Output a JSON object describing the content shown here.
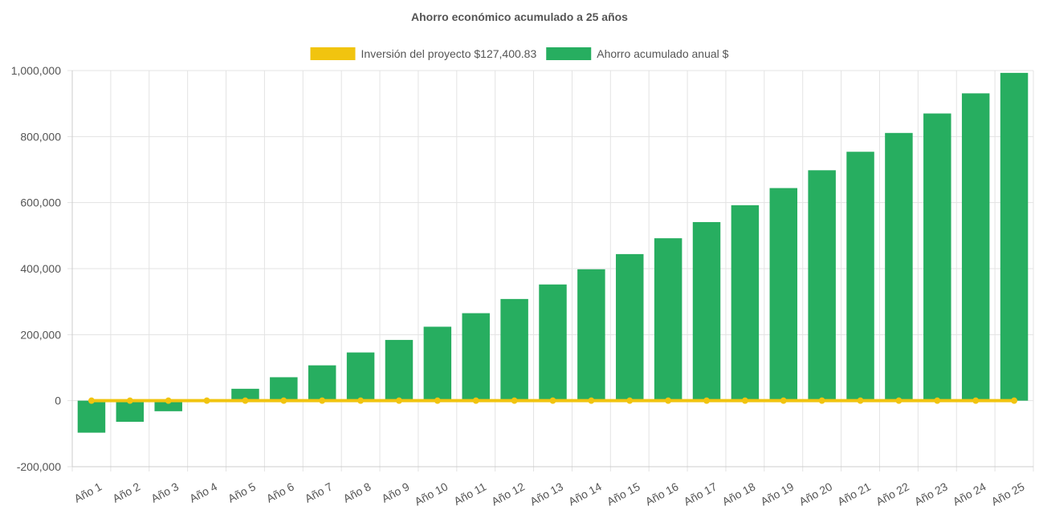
{
  "chart_data": {
    "type": "bar",
    "title": "Ahorro económico acumulado a 25 años",
    "xlabel": "",
    "ylabel": "",
    "ylim": [
      -200000,
      1000000
    ],
    "yticks": [
      -200000,
      0,
      200000,
      400000,
      600000,
      800000,
      1000000
    ],
    "ytick_labels": [
      "-200,000",
      "0",
      "200,000",
      "400,000",
      "600,000",
      "800,000",
      "1,000,000"
    ],
    "grid": true,
    "legend_position": "top",
    "categories": [
      "Año 1",
      "Año 2",
      "Año 3",
      "Año 4",
      "Año 5",
      "Año 6",
      "Año 7",
      "Año 8",
      "Año 9",
      "Año 10",
      "Año 11",
      "Año 12",
      "Año 13",
      "Año 14",
      "Año 15",
      "Año 16",
      "Año 17",
      "Año 18",
      "Año 19",
      "Año 20",
      "Año 21",
      "Año 22",
      "Año 23",
      "Año 24",
      "Año 25"
    ],
    "series": [
      {
        "name": "Inversión del proyecto $127,400.83",
        "type": "line",
        "color": "#f1c40f",
        "values": [
          0,
          0,
          0,
          0,
          0,
          0,
          0,
          0,
          0,
          0,
          0,
          0,
          0,
          0,
          0,
          0,
          0,
          0,
          0,
          0,
          0,
          0,
          0,
          0,
          0
        ]
      },
      {
        "name": "Ahorro acumulado anual $",
        "type": "bar",
        "color": "#27ae60",
        "values": [
          -97000,
          -64000,
          -32000,
          0,
          36000,
          71000,
          107000,
          146000,
          184000,
          224000,
          265000,
          308000,
          352000,
          398000,
          444000,
          492000,
          541000,
          592000,
          644000,
          698000,
          754000,
          811000,
          870000,
          931000,
          993000
        ]
      }
    ]
  }
}
